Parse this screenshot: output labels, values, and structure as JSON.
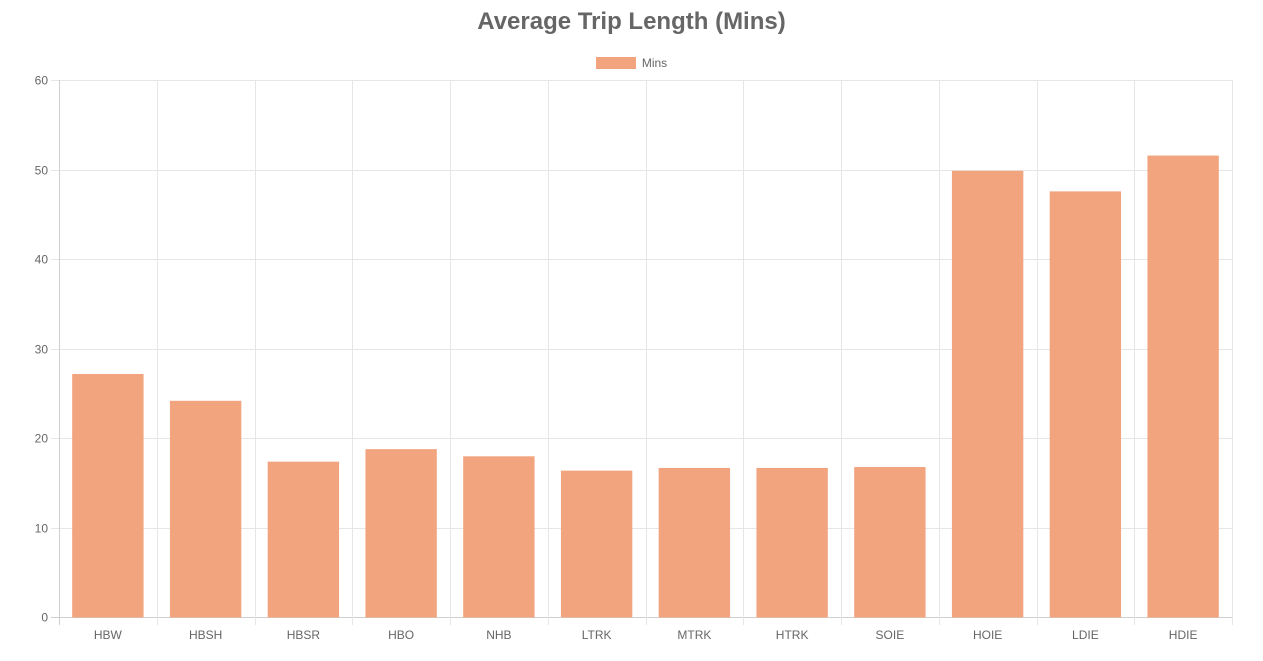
{
  "chart_data": {
    "type": "bar",
    "title": "Average Trip Length (Mins)",
    "xlabel": "",
    "ylabel": "",
    "categories": [
      "HBW",
      "HBSH",
      "HBSR",
      "HBO",
      "NHB",
      "LTRK",
      "MTRK",
      "HTRK",
      "SOIE",
      "HOIE",
      "LDIE",
      "HDIE"
    ],
    "series": [
      {
        "name": "Mins",
        "color": "#f2a47f",
        "values": [
          27.1,
          24.1,
          17.3,
          18.7,
          17.9,
          16.3,
          16.6,
          16.6,
          16.7,
          49.8,
          47.5,
          51.5
        ]
      }
    ],
    "ylim": [
      0,
      60
    ],
    "yticks": [
      0,
      10,
      20,
      30,
      40,
      50,
      60
    ],
    "grid": true,
    "legend_position": "top"
  }
}
